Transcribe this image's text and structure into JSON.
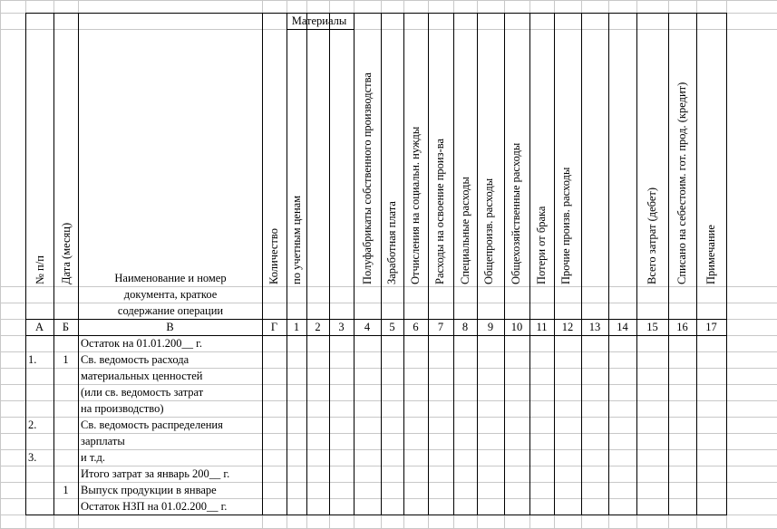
{
  "header": {
    "materials_group": "Материалы",
    "columns": {
      "num": "№ п/п",
      "date": "Дата (месяц)",
      "name_lines": [
        "Наименование и номер",
        "документа, краткое",
        "содержание операции"
      ],
      "quantity": "Количество",
      "by_account_prices": "по учетным ценам",
      "semi_finished": "Полуфабрикаты собственного производства",
      "wages": "Заработная плата",
      "social_deductions": "Отчисления на социальн. нужды",
      "development_costs": "Расходы на освоение произ-ва",
      "special_costs": "Специальные расходы",
      "general_production": "Общепроизв. расходы",
      "general_business": "Общехозяйственные расходы",
      "defect_losses": "Потери от брака",
      "other_production": "Прочие произв. расходы",
      "total_costs": "Всего затрат (дебет)",
      "written_off": "Списано на себестоим. гот. прод. (кредит)",
      "note": "Примечание"
    }
  },
  "index_row": [
    "А",
    "Б",
    "В",
    "Г",
    "1",
    "2",
    "3",
    "4",
    "5",
    "6",
    "7",
    "8",
    "9",
    "10",
    "11",
    "12",
    "13",
    "14",
    "15",
    "16",
    "17"
  ],
  "rows": [
    {
      "num": "",
      "date": "",
      "text": "Остаток на 01.01.200__ г."
    },
    {
      "num": "1.",
      "date": "1",
      "text": "Св. ведомость расхода"
    },
    {
      "num": "",
      "date": "",
      "text": "материальных ценностей"
    },
    {
      "num": "",
      "date": "",
      "text": "(или св. ведомость затрат"
    },
    {
      "num": "",
      "date": "",
      "text": "на производство)"
    },
    {
      "num": "2.",
      "date": "",
      "text": "Св. ведомость распределения"
    },
    {
      "num": "",
      "date": "",
      "text": "зарплаты"
    },
    {
      "num": "3.",
      "date": "",
      "text": "и т.д."
    },
    {
      "num": "",
      "date": "",
      "text": "Итого затрат за январь 200__ г."
    },
    {
      "num": "",
      "date": "1",
      "text": "Выпуск продукции в январе"
    },
    {
      "num": "",
      "date": "",
      "text": "Остаток НЗП на 01.02.200__ г."
    }
  ]
}
